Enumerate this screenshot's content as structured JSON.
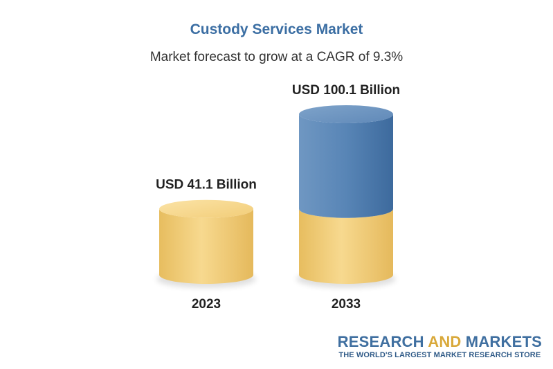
{
  "header": {
    "title": "Custody Services Market",
    "subtitle": "Market forecast to grow at a CAGR of 9.3%"
  },
  "chart_data": {
    "type": "bar",
    "categories": [
      "2023",
      "2033"
    ],
    "values": [
      41.1,
      100.1
    ],
    "data_labels": [
      "USD 41.1 Billion",
      "USD 100.1 Billion"
    ],
    "unit": "USD Billion",
    "title": "Custody Services Market",
    "subtitle": "Market forecast to grow at a CAGR of 9.3%",
    "xlabel": "",
    "ylabel": "",
    "grid": false,
    "colors": {
      "base": "#f3cf7c",
      "growth": "#4f7fb1"
    }
  },
  "branding": {
    "part1": "RESEARCH ",
    "part2": "AND",
    "part3": " MARKETS",
    "tagline": "THE WORLD'S LARGEST MARKET RESEARCH STORE"
  }
}
